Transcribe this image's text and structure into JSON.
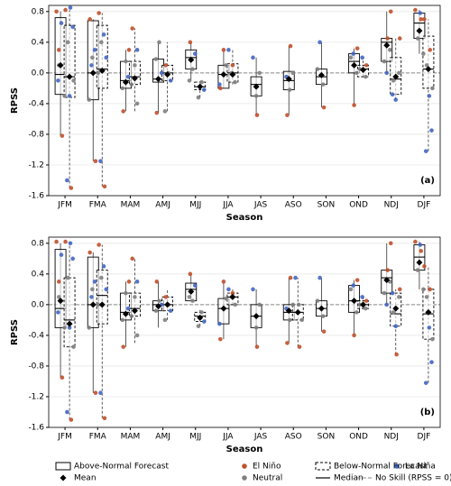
{
  "chart_data": [
    {
      "type": "box",
      "label": "(a)",
      "ylabel": "RPSS",
      "xlabel": "Season",
      "categories": [
        "JFM",
        "FMA",
        "MAM",
        "AMJ",
        "MJJ",
        "JJA",
        "JAS",
        "ASO",
        "SON",
        "OND",
        "NDJ",
        "DJF"
      ],
      "ylim": [
        -1.6,
        0.88
      ],
      "yticks": [
        -1.6,
        -1.2,
        -0.8,
        -0.4,
        {
          "value": 0,
          "label": "0.0"
        },
        0.4,
        0.8
      ],
      "grid": true,
      "boxes": [
        {
          "name": "Above-Normal Forecast",
          "style": "solid",
          "whislo": [
            -0.82,
            -1.15,
            -0.5,
            -0.52,
            -0.1,
            -0.2,
            -0.55,
            -0.55,
            -0.45,
            -0.42,
            0.0,
            0.25
          ],
          "q1": [
            -0.28,
            -0.35,
            -0.2,
            -0.12,
            0.05,
            -0.2,
            -0.3,
            -0.22,
            -0.15,
            0.0,
            0.15,
            0.45
          ],
          "med": [
            -0.02,
            0.0,
            -0.1,
            -0.08,
            0.2,
            -0.02,
            -0.15,
            -0.1,
            -0.05,
            0.15,
            0.4,
            0.65
          ],
          "q3": [
            0.72,
            0.68,
            0.15,
            0.18,
            0.3,
            0.1,
            -0.05,
            0.02,
            0.05,
            0.25,
            0.45,
            0.78
          ],
          "whishi": [
            0.8,
            0.7,
            0.3,
            0.4,
            0.4,
            0.3,
            0.2,
            0.35,
            0.4,
            0.32,
            0.8,
            0.82
          ],
          "mean": [
            0.1,
            0.0,
            -0.12,
            -0.08,
            0.17,
            -0.02,
            -0.18,
            -0.08,
            -0.03,
            0.1,
            0.36,
            0.55
          ]
        },
        {
          "name": "Below-Normal Forecast",
          "style": "dashed",
          "whislo": [
            -1.5,
            -1.48,
            -0.5,
            -0.5,
            -0.32,
            -0.15,
            null,
            null,
            null,
            -0.05,
            -0.35,
            -1.02
          ],
          "q1": [
            -0.32,
            -0.2,
            -0.15,
            -0.1,
            -0.22,
            -0.12,
            null,
            null,
            null,
            -0.05,
            -0.28,
            -0.2
          ],
          "med": [
            -0.05,
            0.05,
            -0.05,
            0.0,
            -0.18,
            0.0,
            null,
            null,
            null,
            0.05,
            -0.08,
            0.05
          ],
          "q3": [
            0.62,
            0.62,
            0.15,
            0.1,
            -0.12,
            0.12,
            null,
            null,
            null,
            0.1,
            0.2,
            0.48
          ],
          "whishi": [
            0.82,
            0.78,
            0.58,
            0.4,
            -0.1,
            0.3,
            null,
            null,
            null,
            0.2,
            0.45,
            0.7
          ],
          "mean": [
            -0.05,
            0.03,
            -0.07,
            -0.02,
            -0.18,
            -0.02,
            null,
            null,
            null,
            0.04,
            -0.05,
            0.05
          ]
        }
      ],
      "points": [
        {
          "name": "El Niño",
          "color": "#c0502e",
          "above": [
            [
              0.8,
              -0.82,
              0.3
            ],
            [
              0.7,
              -1.15
            ],
            [
              -0.5,
              0.3
            ],
            [
              -0.52
            ],
            [
              0.4
            ],
            [
              0.3,
              -0.2
            ],
            [
              -0.55
            ],
            [
              0.35,
              -0.55
            ],
            [
              -0.45
            ],
            [
              0.32,
              -0.42
            ],
            [
              0.8,
              0.45
            ],
            [
              0.82,
              0.7
            ]
          ],
          "below": [
            [
              0.82,
              -1.5
            ],
            [
              0.78,
              -1.48
            ],
            [
              0.58
            ],
            [
              0.1
            ],
            [],
            [
              0.1
            ],
            [],
            [],
            [],
            [
              0.1
            ],
            [
              0.45
            ],
            [
              0.7,
              0.3
            ]
          ]
        },
        {
          "name": "Neutral",
          "color": "#808080",
          "above": [
            [
              0.1,
              -0.3
            ],
            [
              0.2,
              -0.35
            ],
            [
              0.15,
              -0.2
            ],
            [
              0.4,
              0.18
            ],
            [
              0.05,
              -0.1
            ],
            [
              0.1
            ],
            [
              0.0,
              -0.3
            ],
            [
              0.0,
              -0.22
            ],
            [
              0.05,
              -0.15
            ],
            [
              0.2,
              0.0
            ],
            [
              0.15,
              0.3
            ],
            [
              0.45,
              0.25
            ]
          ],
          "below": [
            [
              0.4,
              -0.1
            ],
            [
              0.4,
              0.0
            ],
            [
              0.1,
              -0.15,
              -0.4
            ],
            [
              0.0,
              -0.5
            ],
            [
              -0.12,
              -0.32
            ],
            [
              -0.12,
              0.0
            ],
            [],
            [],
            [],
            [
              0.05,
              -0.05
            ],
            [
              -0.1,
              0.0
            ],
            [
              0.1,
              -0.2
            ]
          ]
        },
        {
          "name": "La Niña",
          "color": "#4266c2",
          "above": [
            [
              0.65,
              -0.1
            ],
            [
              0.3,
              0.1
            ],
            [
              -0.05
            ],
            [
              0.0
            ],
            [
              0.25
            ],
            [
              -0.15
            ],
            [
              0.2
            ],
            [
              -0.05
            ],
            [
              0.4
            ],
            [
              0.25
            ],
            [
              0.0
            ],
            [
              0.78
            ]
          ],
          "below": [
            [
              0.85,
              -1.4,
              0.6,
              -0.3
            ],
            [
              0.5,
              -1.15,
              0.2
            ],
            [
              0.3
            ],
            [
              -0.1
            ],
            [
              -0.22
            ],
            [
              0.3
            ],
            [],
            [],
            [],
            [
              0.2
            ],
            [
              -0.35,
              -0.28
            ],
            [
              -0.3,
              -1.02,
              -0.75
            ]
          ]
        }
      ]
    },
    {
      "type": "box",
      "label": "(b)",
      "ylabel": "RPSS",
      "xlabel": "Season",
      "categories": [
        "JFM",
        "FMA",
        "MAM",
        "AMJ",
        "MJJ",
        "JJA",
        "JAS",
        "ASO",
        "SON",
        "OND",
        "NDJ",
        "DJF"
      ],
      "ylim": [
        -1.6,
        0.88
      ],
      "yticks": [
        -1.6,
        -1.2,
        -0.8,
        -0.4,
        {
          "value": 0,
          "label": "0.0"
        },
        0.4,
        0.8
      ],
      "grid": true,
      "boxes": [
        {
          "name": "Above-Normal Forecast",
          "style": "solid",
          "whislo": [
            -0.95,
            -1.15,
            -0.55,
            -0.3,
            0.05,
            -0.45,
            -0.55,
            -0.5,
            -0.35,
            -0.4,
            0.0,
            0.2
          ],
          "q1": [
            -0.3,
            -0.3,
            -0.2,
            -0.08,
            0.05,
            -0.25,
            -0.3,
            -0.2,
            -0.15,
            -0.1,
            0.15,
            0.45
          ],
          "med": [
            -0.05,
            0.0,
            -0.1,
            0.0,
            0.2,
            -0.05,
            -0.15,
            -0.1,
            -0.05,
            0.05,
            0.35,
            0.62
          ],
          "q3": [
            0.72,
            0.62,
            0.15,
            0.05,
            0.28,
            0.08,
            0.0,
            0.0,
            0.05,
            0.25,
            0.45,
            0.78
          ],
          "whishi": [
            0.8,
            0.68,
            0.3,
            0.3,
            0.4,
            0.3,
            0.2,
            0.35,
            0.35,
            0.32,
            0.8,
            0.82
          ],
          "mean": [
            0.05,
            0.0,
            -0.12,
            -0.02,
            0.17,
            -0.05,
            -0.15,
            -0.08,
            -0.05,
            0.05,
            0.32,
            0.55
          ]
        },
        {
          "name": "Below-Normal Forecast",
          "style": "dashed",
          "whislo": [
            -1.5,
            -1.48,
            -0.5,
            -0.2,
            -0.28,
            0.0,
            null,
            -0.55,
            null,
            -0.05,
            -0.65,
            -1.02
          ],
          "q1": [
            -0.55,
            -0.25,
            -0.15,
            -0.08,
            -0.22,
            0.0,
            null,
            -0.2,
            null,
            -0.05,
            -0.28,
            -0.45
          ],
          "med": [
            -0.2,
            0.12,
            -0.05,
            0.0,
            -0.15,
            0.1,
            null,
            -0.1,
            null,
            0.0,
            -0.12,
            -0.12
          ],
          "q3": [
            0.35,
            0.45,
            0.15,
            0.1,
            -0.1,
            0.15,
            null,
            0.0,
            null,
            0.05,
            0.15,
            0.2
          ],
          "whishi": [
            0.82,
            0.78,
            0.6,
            0.2,
            -0.05,
            0.2,
            null,
            0.35,
            null,
            0.1,
            0.2,
            0.5
          ],
          "mean": [
            -0.25,
            0.0,
            -0.08,
            0.0,
            -0.17,
            0.1,
            null,
            -0.1,
            null,
            0.0,
            -0.05,
            -0.1
          ]
        }
      ],
      "points": [
        {
          "name": "El Niño",
          "color": "#c0502e",
          "above": [
            [
              0.82,
              -0.95,
              0.3
            ],
            [
              0.68,
              -1.15
            ],
            [
              -0.55,
              0.3
            ],
            [
              0.3
            ],
            [
              0.4
            ],
            [
              0.3,
              -0.45
            ],
            [
              -0.55
            ],
            [
              0.35,
              -0.5
            ],
            [
              -0.35
            ],
            [
              0.32,
              -0.4
            ],
            [
              0.8,
              0.45
            ],
            [
              0.82,
              0.7
            ]
          ],
          "below": [
            [
              0.82,
              -1.5
            ],
            [
              0.78,
              -1.48
            ],
            [
              0.6
            ],
            [
              0.1
            ],
            [],
            [
              0.15
            ],
            [],
            [
              -0.55
            ],
            [],
            [
              0.05
            ],
            [
              0.2,
              -0.65
            ],
            [
              0.5,
              0.2
            ]
          ]
        },
        {
          "name": "Neutral",
          "color": "#808080",
          "above": [
            [
              0.1,
              -0.3
            ],
            [
              0.2,
              -0.3
            ],
            [
              0.15,
              -0.2
            ],
            [
              0.05,
              -0.08
            ],
            [
              0.05,
              0.1
            ],
            [
              0.08
            ],
            [
              0.0,
              -0.3
            ],
            [
              0.0,
              -0.2
            ],
            [
              0.05,
              -0.15
            ],
            [
              0.2,
              -0.1
            ],
            [
              0.15,
              0.3
            ],
            [
              0.45,
              0.2
            ]
          ],
          "below": [
            [
              0.35,
              -0.55
            ],
            [
              0.35,
              0.0
            ],
            [
              0.1,
              -0.15,
              -0.4
            ],
            [
              0.0,
              -0.2
            ],
            [
              -0.1,
              -0.28
            ],
            [
              0.0,
              0.1
            ],
            [],
            [
              -0.2,
              0.0
            ],
            [],
            [
              0.0,
              -0.05
            ],
            [
              -0.1,
              0.1
            ],
            [
              0.1,
              -0.45
            ]
          ]
        },
        {
          "name": "La Niña",
          "color": "#4266c2",
          "above": [
            [
              0.65,
              -0.1
            ],
            [
              0.3,
              0.1
            ],
            [
              -0.05
            ],
            [
              0.0
            ],
            [
              0.25
            ],
            [
              -0.25
            ],
            [
              0.2
            ],
            [
              -0.05
            ],
            [
              0.35
            ],
            [
              0.25
            ],
            [
              0.0
            ],
            [
              0.78
            ]
          ],
          "below": [
            [
              0.8,
              -1.4,
              0.6,
              -0.3
            ],
            [
              0.5,
              -1.15,
              0.2
            ],
            [
              0.3
            ],
            [
              -0.08
            ],
            [
              -0.22
            ],
            [
              0.2
            ],
            [],
            [
              0.35
            ],
            [],
            [
              0.1
            ],
            [
              -0.28,
              0.15
            ],
            [
              -0.3,
              -1.02,
              -0.75
            ]
          ]
        }
      ]
    }
  ],
  "legend": {
    "mean": "Mean",
    "median": "Median",
    "no_skill": {
      "label": "No Skill (RPSS = 0)",
      "value": 0
    }
  }
}
